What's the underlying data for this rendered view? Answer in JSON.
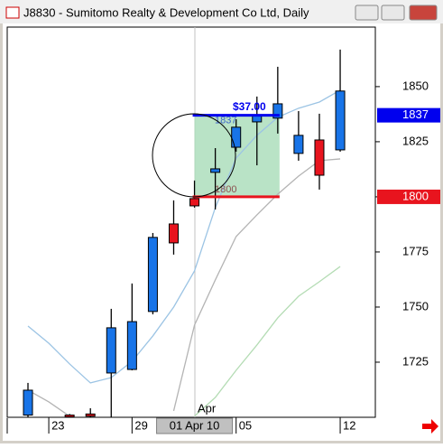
{
  "window_title": "J8830 - Sumitomo Realty & Development Co Ltd, Daily",
  "chart_data": {
    "type": "candlestick",
    "categories": [
      null,
      "23",
      null,
      null,
      null,
      "29",
      null,
      null,
      "01 Apr 10",
      null,
      "05",
      null,
      null,
      null,
      null,
      "12"
    ],
    "open": [
      1701,
      null,
      1701,
      1701.5,
      1720.1,
      1721.7,
      1748.0,
      1787.7,
      1799.2,
      1811.1,
      1822.5,
      1834.0,
      1835.7,
      1819.7,
      1825.8,
      1821.3
    ],
    "high": [
      1715.6,
      null,
      1701.5,
      1704.1,
      1749.2,
      1760.7,
      1783.6,
      1798.4,
      1807.4,
      1822.1,
      1835.2,
      1845.5,
      1859.0,
      1838.9,
      1837.7,
      1866.8
    ],
    "low": [
      1700,
      null,
      1700.4,
      1700,
      1700,
      1721.3,
      1746.7,
      1773.8,
      1795.1,
      1794.3,
      1820.5,
      1814.3,
      1828.7,
      1816.4,
      1803.3,
      1820.5
    ],
    "close": [
      1712.3,
      null,
      1700.8,
      1700.5,
      1740.6,
      1743.4,
      1781.6,
      1779.1,
      1795.9,
      1812.7,
      1831.6,
      1836.9,
      1842.2,
      1827.9,
      1809.8,
      1848.0
    ],
    "up_color": "#1874e8",
    "down_color": "#e8141e",
    "lines": [
      {
        "color": "#9cc4e4",
        "values": [
          1741.4,
          1733.6,
          1724.2,
          1715.6,
          1718.0,
          1725.4,
          1736.9,
          1750.0,
          1766.4,
          1795.1,
          1817.6,
          1827.9,
          1836.1,
          1840.2,
          1843.0,
          1848.4
        ]
      },
      {
        "color": "#b4b4b4",
        "values": [
          1712.3,
          1707.0,
          1700.5,
          null,
          null,
          null,
          null,
          1702.9,
          1741.8,
          1762.3,
          1782.0,
          1791.8,
          1801.2,
          1809.4,
          1816.4,
          1817.2
        ]
      },
      {
        "color": "#b4dcb4",
        "values": [
          null,
          null,
          null,
          null,
          null,
          null,
          null,
          null,
          1700.5,
          1709.0,
          1721.3,
          1732.8,
          1745.1,
          1754.9,
          1761.5,
          1768.4
        ]
      }
    ],
    "ylim": [
      1700,
      1877
    ],
    "yticks": [
      1725,
      1750,
      1775,
      1800,
      1825,
      1850
    ],
    "price_labels": [
      {
        "value": 1837,
        "color": "#0000ee"
      },
      {
        "value": 1800,
        "color": "#e8141e"
      }
    ],
    "measure_text": "$37.00",
    "month_label": "Apr"
  }
}
